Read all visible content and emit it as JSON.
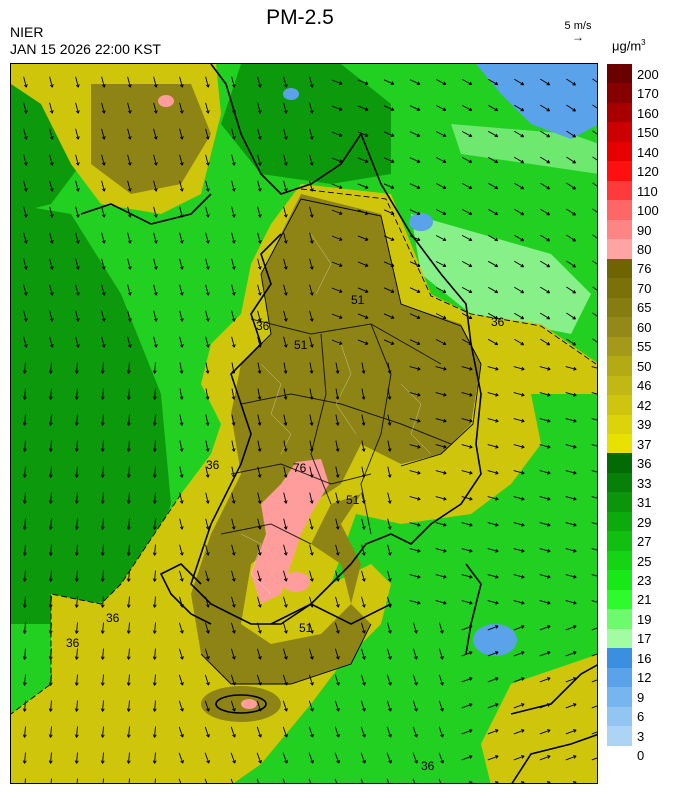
{
  "header": {
    "agency": "NIER",
    "datetime": "JAN 15 2026 22:00 KST",
    "title": "PM-2.5"
  },
  "wind_reference": {
    "label": "5 m/s",
    "arrow_glyph": "→"
  },
  "colorbar": {
    "unit_base": "μg/m",
    "unit_exp": "3",
    "levels": [
      {
        "label": "200",
        "color": "#6b0000"
      },
      {
        "label": "170",
        "color": "#860000"
      },
      {
        "label": "160",
        "color": "#a80000"
      },
      {
        "label": "150",
        "color": "#cc0000"
      },
      {
        "label": "140",
        "color": "#e60000"
      },
      {
        "label": "120",
        "color": "#ff1010"
      },
      {
        "label": "110",
        "color": "#ff3a3a"
      },
      {
        "label": "100",
        "color": "#ff6666"
      },
      {
        "label": "90",
        "color": "#ff8484"
      },
      {
        "label": "80",
        "color": "#ffa3a3"
      },
      {
        "label": "76",
        "color": "#6e6400"
      },
      {
        "label": "70",
        "color": "#7c7108"
      },
      {
        "label": "65",
        "color": "#877c10"
      },
      {
        "label": "60",
        "color": "#938818"
      },
      {
        "label": "55",
        "color": "#a49918"
      },
      {
        "label": "50",
        "color": "#b4aa14"
      },
      {
        "label": "46",
        "color": "#c2b814"
      },
      {
        "label": "42",
        "color": "#cfc40e"
      },
      {
        "label": "39",
        "color": "#dcd30a"
      },
      {
        "label": "37",
        "color": "#e8e100"
      },
      {
        "label": "36",
        "color": "#036b03"
      },
      {
        "label": "33",
        "color": "#078007"
      },
      {
        "label": "31",
        "color": "#0a950a"
      },
      {
        "label": "29",
        "color": "#0daa0d"
      },
      {
        "label": "27",
        "color": "#10bf10"
      },
      {
        "label": "25",
        "color": "#14d414"
      },
      {
        "label": "23",
        "color": "#18e818"
      },
      {
        "label": "21",
        "color": "#2efa2e"
      },
      {
        "label": "19",
        "color": "#6dfb6d"
      },
      {
        "label": "17",
        "color": "#a2fca2"
      },
      {
        "label": "16",
        "color": "#3a8fe0"
      },
      {
        "label": "12",
        "color": "#5aa2ea"
      },
      {
        "label": "9",
        "color": "#77b5ef"
      },
      {
        "label": "6",
        "color": "#93c5f2"
      },
      {
        "label": "3",
        "color": "#add4f5"
      },
      {
        "label": "0",
        "color": "#ffffff"
      }
    ]
  },
  "map": {
    "contour_labels": [
      "36",
      "51",
      "76"
    ],
    "colors": {
      "green_bg": "#21d021",
      "dark_green": "#0c9a0c",
      "light_green": "#88f088",
      "yellow": "#cfc60c",
      "olive": "#8e8315",
      "pink": "#ff9c9c",
      "blue": "#5aa2ea"
    }
  }
}
